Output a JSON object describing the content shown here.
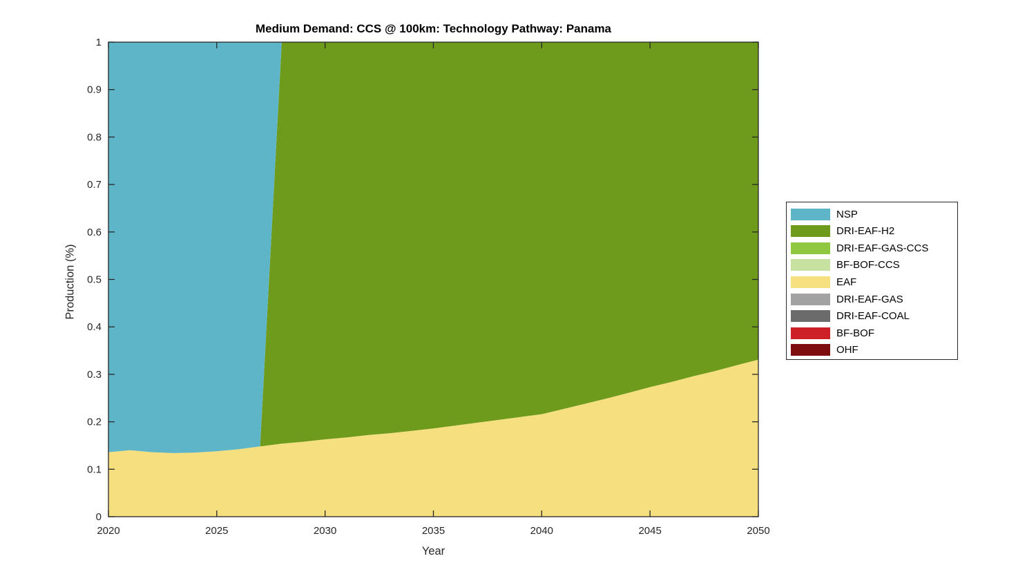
{
  "figure": {
    "background": "#ffffff",
    "axis_color": "#262626"
  },
  "chart_data": {
    "type": "area",
    "stacked": true,
    "title": "Medium Demand: CCS @ 100km: Technology Pathway: Panama",
    "xlabel": "Year",
    "ylabel": "Production (%)",
    "xlim": [
      2020,
      2050
    ],
    "ylim": [
      0,
      1
    ],
    "grid": false,
    "legend_position": "right-outside",
    "x": [
      2020,
      2021,
      2022,
      2023,
      2024,
      2025,
      2026,
      2027,
      2028,
      2029,
      2030,
      2031,
      2032,
      2033,
      2034,
      2035,
      2036,
      2037,
      2038,
      2039,
      2040,
      2041,
      2042,
      2043,
      2044,
      2045,
      2046,
      2047,
      2048,
      2049,
      2050
    ],
    "xticks": [
      2020,
      2025,
      2030,
      2035,
      2040,
      2045,
      2050
    ],
    "xtick_labels": [
      "2020",
      "2025",
      "2030",
      "2035",
      "2040",
      "2045",
      "2050"
    ],
    "yticks": [
      0,
      0.1,
      0.2,
      0.3,
      0.4,
      0.5,
      0.6,
      0.7,
      0.8,
      0.9,
      1
    ],
    "ytick_labels": [
      "0",
      "0.1",
      "0.2",
      "0.3",
      "0.4",
      "0.5",
      "0.6",
      "0.7",
      "0.8",
      "0.9",
      "1"
    ],
    "series": [
      {
        "name": "OHF",
        "color": "#7d0d0e",
        "values": 0
      },
      {
        "name": "BF-BOF",
        "color": "#cb2127",
        "values": 0
      },
      {
        "name": "DRI-EAF-COAL",
        "color": "#6b6b6b",
        "values": 0
      },
      {
        "name": "DRI-EAF-GAS",
        "color": "#a2a2a2",
        "values": 0
      },
      {
        "name": "EAF",
        "color": "#f6df7e",
        "values": [
          0.136,
          0.14,
          0.136,
          0.134,
          0.135,
          0.138,
          0.142,
          0.148,
          0.154,
          0.158,
          0.163,
          0.167,
          0.172,
          0.176,
          0.181,
          0.186,
          0.192,
          0.198,
          0.204,
          0.21,
          0.216,
          0.227,
          0.238,
          0.249,
          0.261,
          0.273,
          0.284,
          0.296,
          0.307,
          0.319,
          0.331
        ]
      },
      {
        "name": "BF-BOF-CCS",
        "color": "#c7e2a0",
        "values": 0
      },
      {
        "name": "DRI-EAF-GAS-CCS",
        "color": "#8fc73e",
        "values": 0
      },
      {
        "name": "DRI-EAF-H2",
        "color": "#6f9b1d",
        "values": [
          0,
          0,
          0,
          0,
          0,
          0,
          0,
          0,
          0.846,
          0.842,
          0.837,
          0.833,
          0.828,
          0.824,
          0.819,
          0.814,
          0.808,
          0.802,
          0.796,
          0.79,
          0.784,
          0.773,
          0.762,
          0.751,
          0.739,
          0.727,
          0.716,
          0.704,
          0.693,
          0.681,
          0.669
        ]
      },
      {
        "name": "NSP",
        "color": "#5fb5c8",
        "values": [
          0.864,
          0.86,
          0.864,
          0.866,
          0.865,
          0.862,
          0.858,
          0.852,
          0,
          0,
          0,
          0,
          0,
          0,
          0,
          0,
          0,
          0,
          0,
          0,
          0,
          0,
          0,
          0,
          0,
          0,
          0,
          0,
          0,
          0,
          0
        ]
      }
    ],
    "legend": {
      "items": [
        {
          "label": "NSP",
          "color": "#5fb5c8"
        },
        {
          "label": "DRI-EAF-H2",
          "color": "#6f9b1d"
        },
        {
          "label": "DRI-EAF-GAS-CCS",
          "color": "#8fc73e"
        },
        {
          "label": "BF-BOF-CCS",
          "color": "#c7e2a0"
        },
        {
          "label": "EAF",
          "color": "#f6df7e"
        },
        {
          "label": "DRI-EAF-GAS",
          "color": "#a2a2a2"
        },
        {
          "label": "DRI-EAF-COAL",
          "color": "#6b6b6b"
        },
        {
          "label": "BF-BOF",
          "color": "#cb2127"
        },
        {
          "label": "OHF",
          "color": "#7d0d0e"
        }
      ]
    }
  }
}
